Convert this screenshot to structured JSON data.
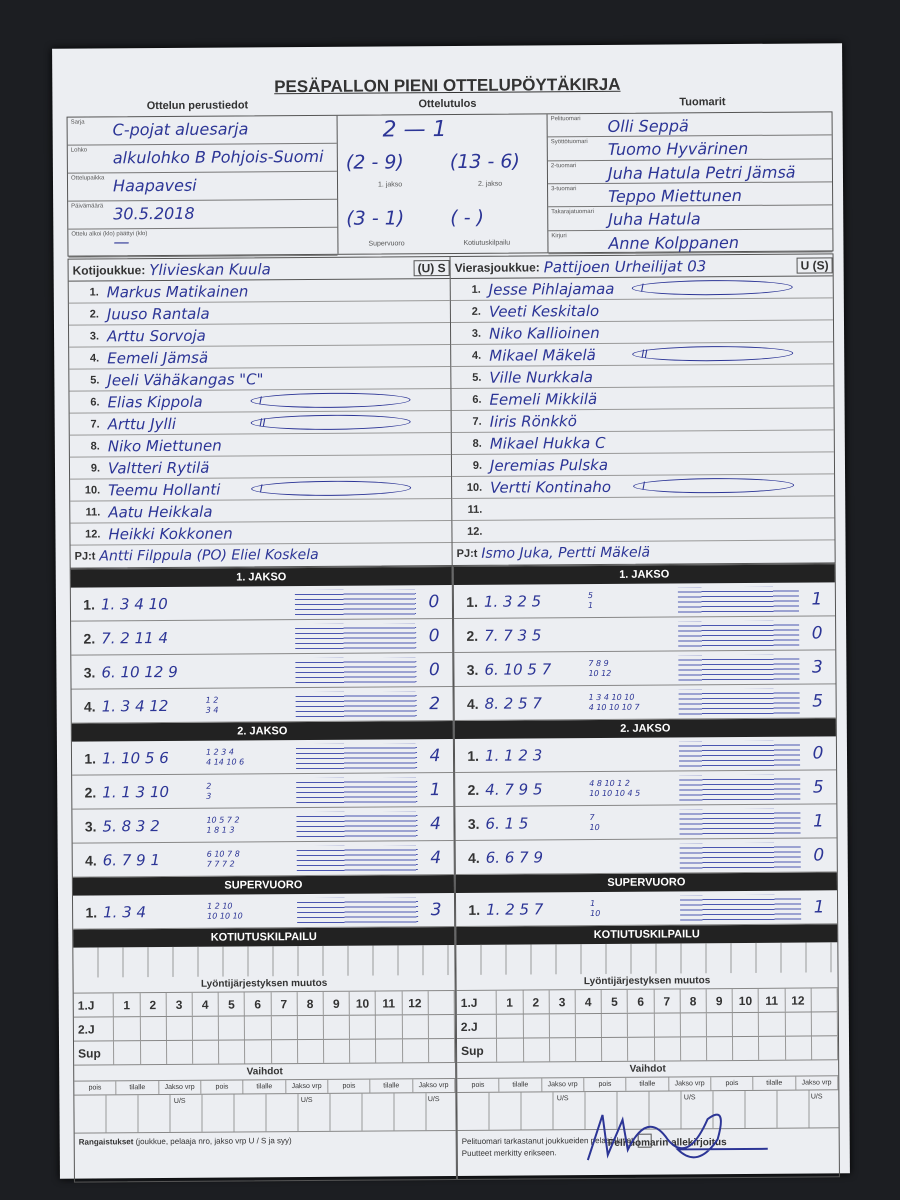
{
  "title": "PESÄPALLON PIENI OTTELUPÖYTÄKIRJA",
  "sections": {
    "basic": "Ottelun perustiedot",
    "result": "Ottelutulos",
    "referees": "Tuomarit"
  },
  "basic": [
    {
      "label": "Sarja",
      "value": "C-pojat aluesarja"
    },
    {
      "label": "Lohko",
      "value": "alkulohko B Pohjois-Suomi"
    },
    {
      "label": "Ottelupaikka",
      "value": "Haapavesi"
    },
    {
      "label": "Päivämäärä",
      "value": "30.5.2018"
    },
    {
      "label": "Ottelu alkoi (klo)      päättyi (klo)",
      "value": "—"
    }
  ],
  "result": {
    "final": "2 — 1",
    "jakso1": "(2 - 9)",
    "jakso2": "(13 - 6)",
    "jakso1_label": "1. jakso",
    "jakso2_label": "2. jakso",
    "super": "(3 - 1)",
    "kotiutus": "(   -   )",
    "super_label": "Supervuoro",
    "kotiutus_label": "Kotiutuskilpailu"
  },
  "referees": [
    {
      "label": "Pelituomari",
      "value": "Olli Seppä"
    },
    {
      "label": "Syöttötuomari",
      "value": "Tuomo Hyvärinen"
    },
    {
      "label": "2-tuomari",
      "value": "Juha Hatula  Petri Jämsä"
    },
    {
      "label": "3-tuomari",
      "value": "Teppo Miettunen"
    },
    {
      "label": "Takarajatuomari",
      "value": "Juha Hatula"
    },
    {
      "label": "Kirjuri",
      "value": "Anne Kolppanen"
    }
  ],
  "home": {
    "label": "Kotijoukkue:",
    "name": "Ylivieskan Kuula",
    "us": "(U) S",
    "pj_label": "PJ:t",
    "pj": "Antti Filppula (PO) Eliel Koskela",
    "players": [
      [
        "1.",
        "Markus Matikainen",
        ""
      ],
      [
        "2.",
        "Juuso Rantala",
        ""
      ],
      [
        "3.",
        "Arttu Sorvoja",
        ""
      ],
      [
        "4.",
        "Eemeli Jämsä",
        ""
      ],
      [
        "5.",
        "Jeeli Vähäkangas \"C\"",
        ""
      ],
      [
        "6.",
        "Elias Kippola",
        "I"
      ],
      [
        "7.",
        "Arttu Jylli",
        "II"
      ],
      [
        "8.",
        "Niko Miettunen",
        ""
      ],
      [
        "9.",
        "Valtteri Rytilä",
        ""
      ],
      [
        "10.",
        "Teemu Hollanti",
        "I"
      ],
      [
        "11.",
        "Aatu Heikkala",
        ""
      ],
      [
        "12.",
        "Heikki Kokkonen",
        ""
      ]
    ]
  },
  "away": {
    "label": "Vierasjoukkue:",
    "name": "Pattijoen Urheilijat 03",
    "us": "U (S)",
    "pj_label": "PJ:t",
    "pj": "Ismo Juka, Pertti Mäkelä",
    "players": [
      [
        "1.",
        "Jesse Pihlajamaa",
        "I"
      ],
      [
        "2.",
        "Veeti Keskitalo",
        ""
      ],
      [
        "3.",
        "Niko Kallioinen",
        ""
      ],
      [
        "4.",
        "Mikael Mäkelä",
        "II"
      ],
      [
        "5.",
        "Ville Nurkkala",
        ""
      ],
      [
        "6.",
        "Eemeli Mikkilä",
        ""
      ],
      [
        "7.",
        "Iiris Rönkkö",
        ""
      ],
      [
        "8.",
        "Mikael Hukka C",
        ""
      ],
      [
        "9.",
        "Jeremias Pulska",
        ""
      ],
      [
        "10.",
        "Vertti Kontinaho",
        "I"
      ],
      [
        "11.",
        "",
        ""
      ],
      [
        "12.",
        "",
        ""
      ]
    ]
  },
  "bars": {
    "j1": "1. JAKSO",
    "j2": "2. JAKSO",
    "sup": "SUPERVUORO",
    "kot": "KOTIUTUSKILPAILU",
    "order": "Lyöntijärjestyksen muutos",
    "subs": "Vaihdot"
  },
  "innings": {
    "home": {
      "j1": [
        [
          "1.",
          "1. 3 4 10",
          "",
          "0"
        ],
        [
          "2.",
          "7. 2 11 4",
          "",
          "0"
        ],
        [
          "3.",
          "6. 10 12 9",
          "",
          "0"
        ],
        [
          "4.",
          "1. 3 4 12",
          "1 2\n3 4",
          "2"
        ]
      ],
      "j2": [
        [
          "1.",
          "1. 10 5 6",
          "1 2 3 4\n4 14 10 6",
          "4"
        ],
        [
          "2.",
          "1. 1 3 10",
          "2\n3",
          "1"
        ],
        [
          "3.",
          "5. 8 3 2",
          "10 5 7 2\n1 8 1 3",
          "4"
        ],
        [
          "4.",
          "6. 7 9 1",
          "6 10 7 8\n7 7 7 2",
          "4"
        ]
      ],
      "sup": [
        [
          "1.",
          "1. 3 4",
          "1 2 10\n10 10 10",
          "3"
        ]
      ]
    },
    "away": {
      "j1": [
        [
          "1.",
          "1. 3 2 5",
          "5\n1",
          "1"
        ],
        [
          "2.",
          "7. 7 3 5",
          "",
          "0"
        ],
        [
          "3.",
          "6. 10 5 7",
          "7 8 9\n10 12",
          "3"
        ],
        [
          "4.",
          "8. 2 5 7",
          "1 3 4 10 10\n4 10 10 10 7",
          "5"
        ]
      ],
      "j2": [
        [
          "1.",
          "1. 1 2 3",
          "",
          "0"
        ],
        [
          "2.",
          "4. 7 9 5",
          "4 8 10 1 2\n10 10 10 4 5",
          "5"
        ],
        [
          "3.",
          "6. 1 5",
          "7\n10",
          "1"
        ],
        [
          "4.",
          "6. 6 7 9",
          "",
          "0"
        ]
      ],
      "sup": [
        [
          "1.",
          "1. 2 5 7",
          "1\n10",
          "1"
        ]
      ]
    }
  },
  "order_rows": {
    "header": [
      "1.J",
      "1",
      "2",
      "3",
      "4",
      "5",
      "6",
      "7",
      "8",
      "9",
      "10",
      "11",
      "12",
      ""
    ],
    "rows": [
      "2.J",
      "Sup"
    ]
  },
  "subs_header": [
    "pois",
    "tilalle",
    "Jakso vrp U/S",
    "pois",
    "tilalle",
    "Jakso vrp U/S",
    "pois",
    "tilalle",
    "Jakso vrp U/S"
  ],
  "footer": {
    "penalties": "Rangaistukset",
    "penalties_note": "(joukkue, pelaaja nro, jakso vrp U / S ja syy)",
    "checked": "Pelituomari tarkastanut joukkueiden pelaajaluvat.",
    "noted": "Puutteet merkitty erikseen.",
    "signature": "Pelituomarin allekirjoitus"
  },
  "colors": {
    "ink": "#2c3596",
    "paper": "#eceef2",
    "bar": "#222222"
  }
}
